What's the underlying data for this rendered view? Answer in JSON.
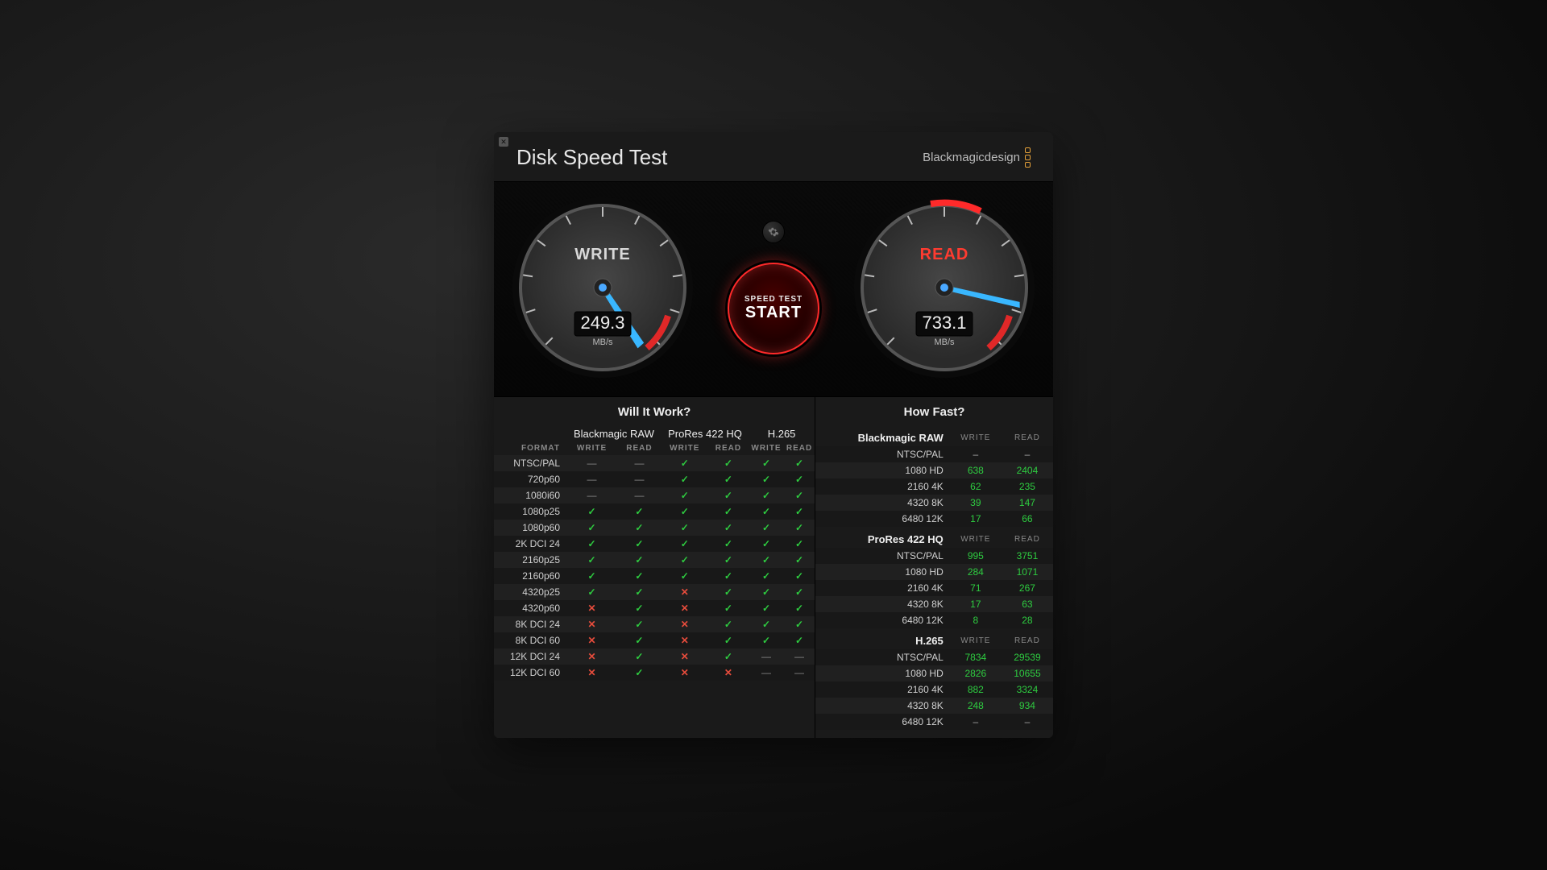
{
  "app": {
    "title": "Disk Speed Test",
    "brand": "Blackmagicdesign"
  },
  "gauges": {
    "write": {
      "label": "WRITE",
      "value": "249.3",
      "unit": "MB/s",
      "needle_angle": -120,
      "max_angle_range": 270,
      "color_label": "#d8d8d8"
    },
    "read": {
      "label": "READ",
      "value": "733.1",
      "unit": "MB/s",
      "needle_angle": -150,
      "color_label": "#ff3b30",
      "fill_arc_deg": 40
    }
  },
  "start": {
    "line1": "SPEED TEST",
    "line2": "START"
  },
  "will_it_work": {
    "title": "Will It Work?",
    "codecs": [
      "Blackmagic RAW",
      "ProRes 422 HQ",
      "H.265"
    ],
    "subheaders": [
      "WRITE",
      "READ"
    ],
    "format_header": "FORMAT",
    "rows": [
      {
        "fmt": "NTSC/PAL",
        "cells": [
          "dash",
          "dash",
          "chk",
          "chk",
          "chk",
          "chk"
        ]
      },
      {
        "fmt": "720p60",
        "cells": [
          "dash",
          "dash",
          "chk",
          "chk",
          "chk",
          "chk"
        ]
      },
      {
        "fmt": "1080i60",
        "cells": [
          "dash",
          "dash",
          "chk",
          "chk",
          "chk",
          "chk"
        ]
      },
      {
        "fmt": "1080p25",
        "cells": [
          "chk",
          "chk",
          "chk",
          "chk",
          "chk",
          "chk"
        ]
      },
      {
        "fmt": "1080p60",
        "cells": [
          "chk",
          "chk",
          "chk",
          "chk",
          "chk",
          "chk"
        ]
      },
      {
        "fmt": "2K DCI 24",
        "cells": [
          "chk",
          "chk",
          "chk",
          "chk",
          "chk",
          "chk"
        ]
      },
      {
        "fmt": "2160p25",
        "cells": [
          "chk",
          "chk",
          "chk",
          "chk",
          "chk",
          "chk"
        ]
      },
      {
        "fmt": "2160p60",
        "cells": [
          "chk",
          "chk",
          "chk",
          "chk",
          "chk",
          "chk"
        ]
      },
      {
        "fmt": "4320p25",
        "cells": [
          "chk",
          "chk",
          "x",
          "chk",
          "chk",
          "chk"
        ]
      },
      {
        "fmt": "4320p60",
        "cells": [
          "x",
          "chk",
          "x",
          "chk",
          "chk",
          "chk"
        ]
      },
      {
        "fmt": "8K DCI 24",
        "cells": [
          "x",
          "chk",
          "x",
          "chk",
          "chk",
          "chk"
        ]
      },
      {
        "fmt": "8K DCI 60",
        "cells": [
          "x",
          "chk",
          "x",
          "chk",
          "chk",
          "chk"
        ]
      },
      {
        "fmt": "12K DCI 24",
        "cells": [
          "x",
          "chk",
          "x",
          "chk",
          "dash",
          "dash"
        ]
      },
      {
        "fmt": "12K DCI 60",
        "cells": [
          "x",
          "chk",
          "x",
          "x",
          "dash",
          "dash"
        ]
      }
    ]
  },
  "how_fast": {
    "title": "How Fast?",
    "subheaders": [
      "WRITE",
      "READ"
    ],
    "sections": [
      {
        "name": "Blackmagic RAW",
        "rows": [
          {
            "fmt": "NTSC/PAL",
            "w": "–",
            "r": "–"
          },
          {
            "fmt": "1080 HD",
            "w": "638",
            "r": "2404"
          },
          {
            "fmt": "2160 4K",
            "w": "62",
            "r": "235"
          },
          {
            "fmt": "4320 8K",
            "w": "39",
            "r": "147"
          },
          {
            "fmt": "6480 12K",
            "w": "17",
            "r": "66"
          }
        ]
      },
      {
        "name": "ProRes 422 HQ",
        "rows": [
          {
            "fmt": "NTSC/PAL",
            "w": "995",
            "r": "3751"
          },
          {
            "fmt": "1080 HD",
            "w": "284",
            "r": "1071"
          },
          {
            "fmt": "2160 4K",
            "w": "71",
            "r": "267"
          },
          {
            "fmt": "4320 8K",
            "w": "17",
            "r": "63"
          },
          {
            "fmt": "6480 12K",
            "w": "8",
            "r": "28"
          }
        ]
      },
      {
        "name": "H.265",
        "rows": [
          {
            "fmt": "NTSC/PAL",
            "w": "7834",
            "r": "29539"
          },
          {
            "fmt": "1080 HD",
            "w": "2826",
            "r": "10655"
          },
          {
            "fmt": "2160 4K",
            "w": "882",
            "r": "3324"
          },
          {
            "fmt": "4320 8K",
            "w": "248",
            "r": "934"
          },
          {
            "fmt": "6480 12K",
            "w": "–",
            "r": "–"
          }
        ]
      }
    ]
  },
  "colors": {
    "green": "#2ecc40",
    "red": "#e74c3c",
    "needle": "#39b7ff",
    "gauge_face": "#3a3a3a",
    "gauge_rim": "#0a0a0a",
    "redzone": "#e02828"
  }
}
